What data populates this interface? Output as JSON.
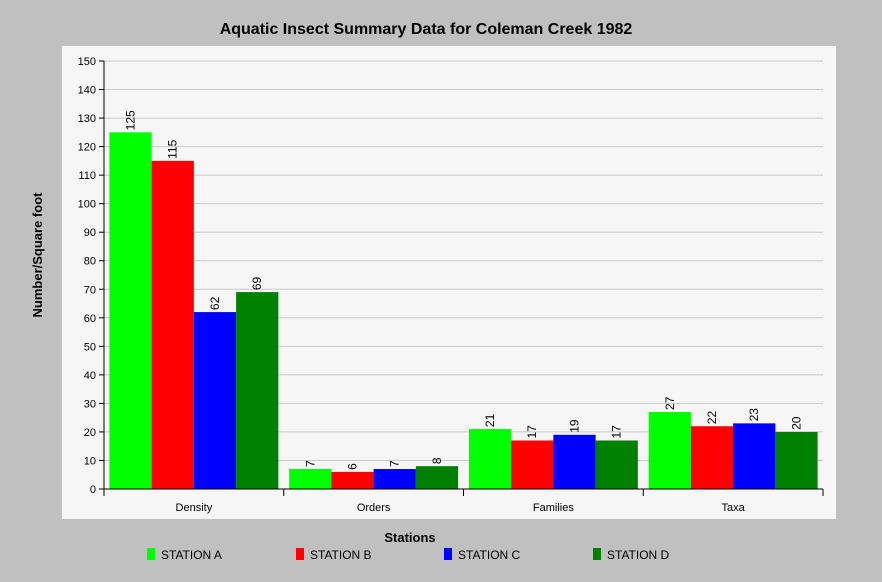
{
  "chart_data": {
    "type": "bar",
    "title": "Aquatic Insect Summary Data for Coleman Creek 1982",
    "xlabel": "Stations",
    "ylabel": "Number/Square foot",
    "categories": [
      "Density",
      "Orders",
      "Families",
      "Taxa"
    ],
    "yticks": [
      0,
      10,
      20,
      30,
      40,
      50,
      60,
      70,
      80,
      90,
      100,
      110,
      120,
      130,
      140,
      150
    ],
    "ylim": [
      0,
      150
    ],
    "grid": true,
    "legend_position": "bottom",
    "series": [
      {
        "name": "STATION A",
        "color": "#00ff00",
        "values": [
          125,
          7,
          21,
          27
        ]
      },
      {
        "name": "STATION B",
        "color": "#ff0000",
        "values": [
          115,
          6,
          17,
          22
        ]
      },
      {
        "name": "STATION C",
        "color": "#0000ff",
        "values": [
          62,
          7,
          19,
          23
        ]
      },
      {
        "name": "STATION D",
        "color": "#008000",
        "values": [
          69,
          8,
          17,
          20
        ]
      }
    ]
  }
}
